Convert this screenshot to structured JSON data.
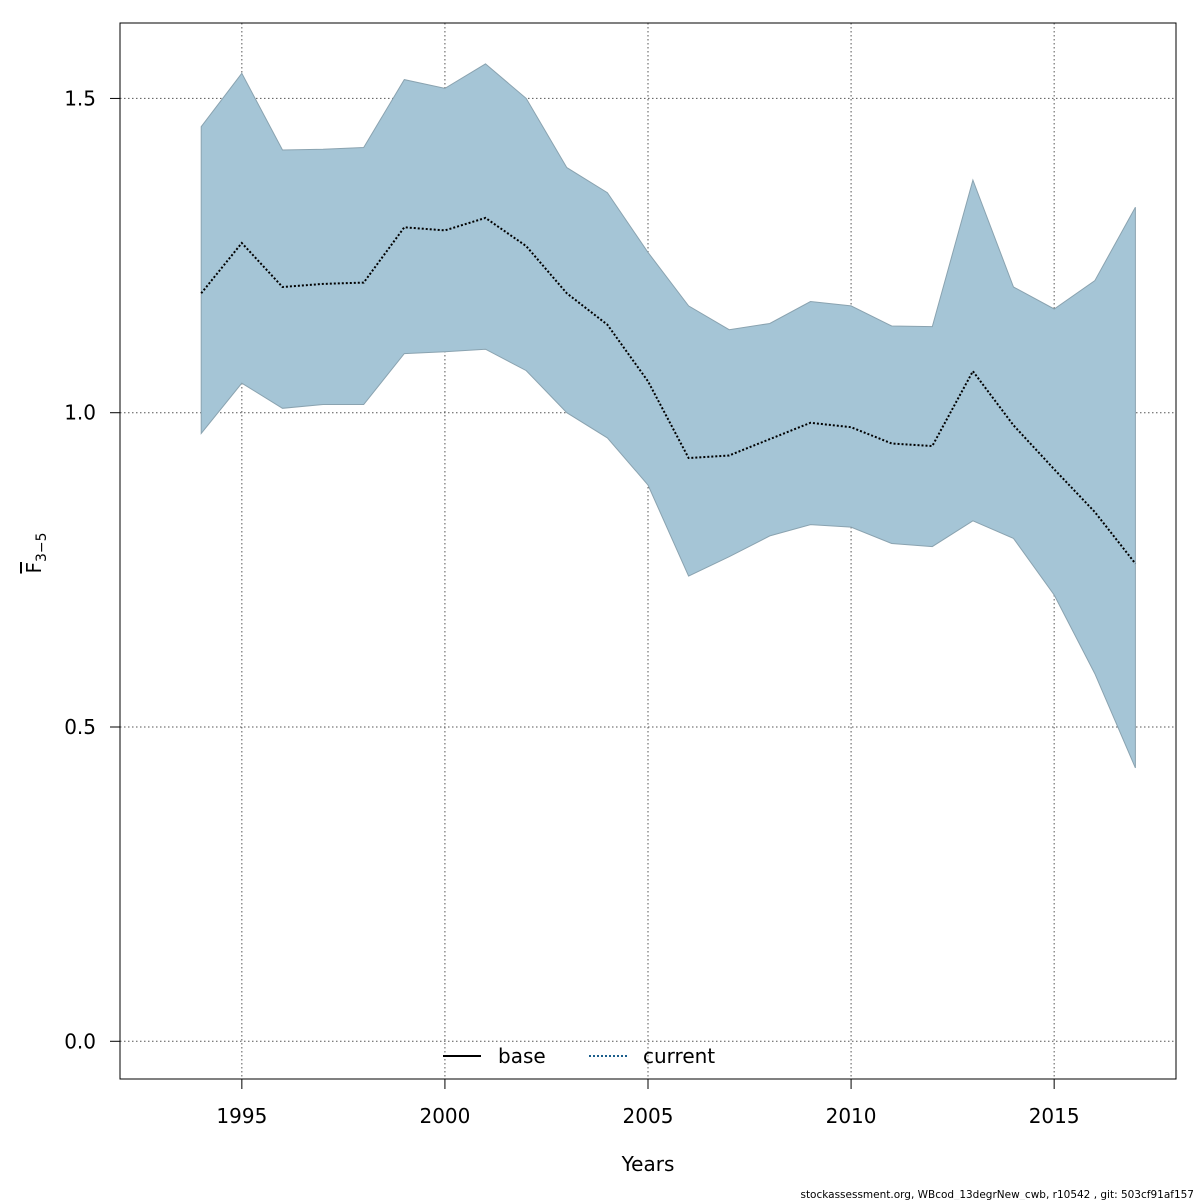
{
  "chart_data": {
    "type": "area",
    "xlabel": "Years",
    "ylabel": {
      "base": "F",
      "subscript": "3−5"
    },
    "xlim": [
      1992,
      2018
    ],
    "ylim": [
      -0.06,
      1.62
    ],
    "xticks": [
      "1995",
      "2000",
      "2005",
      "2010",
      "2015"
    ],
    "yticks": [
      "0.0",
      "0.5",
      "1.0",
      "1.5"
    ],
    "grid": true,
    "legend": {
      "placement": "bottom-center",
      "entries": [
        {
          "label": "base",
          "style": "solid",
          "color": "#000000"
        },
        {
          "label": "current",
          "style": "dotted",
          "color": "#1b5f8c"
        }
      ]
    },
    "band_color": "#a5c5d6",
    "band_edge_color": "#8aa3b0",
    "x": [
      1994,
      1995,
      1996,
      1997,
      1998,
      1999,
      2000,
      2001,
      2002,
      2003,
      2004,
      2005,
      2006,
      2007,
      2008,
      2009,
      2010,
      2011,
      2012,
      2013,
      2014,
      2015,
      2016,
      2017
    ],
    "series": [
      {
        "name": "current",
        "values": [
          1.19,
          1.27,
          1.2,
          1.205,
          1.207,
          1.295,
          1.29,
          1.31,
          1.265,
          1.19,
          1.14,
          1.05,
          0.928,
          0.932,
          0.958,
          0.984,
          0.977,
          0.951,
          0.947,
          1.066,
          0.98,
          0.91,
          0.842,
          0.76
        ],
        "lower": [
          0.967,
          1.047,
          1.007,
          1.013,
          1.013,
          1.094,
          1.097,
          1.101,
          1.067,
          1.0,
          0.96,
          0.885,
          0.74,
          0.771,
          0.804,
          0.822,
          0.818,
          0.792,
          0.787,
          0.828,
          0.8,
          0.71,
          0.585,
          0.435
        ],
        "upper": [
          1.455,
          1.54,
          1.418,
          1.419,
          1.422,
          1.53,
          1.516,
          1.555,
          1.5,
          1.39,
          1.35,
          1.255,
          1.17,
          1.132,
          1.142,
          1.177,
          1.17,
          1.138,
          1.137,
          1.37,
          1.2,
          1.165,
          1.21,
          1.327
        ]
      }
    ]
  },
  "footer": {
    "note": "stockassessment.org, WBcod_13degrNew_cwb, r10542 , git: 503cf91af157"
  }
}
